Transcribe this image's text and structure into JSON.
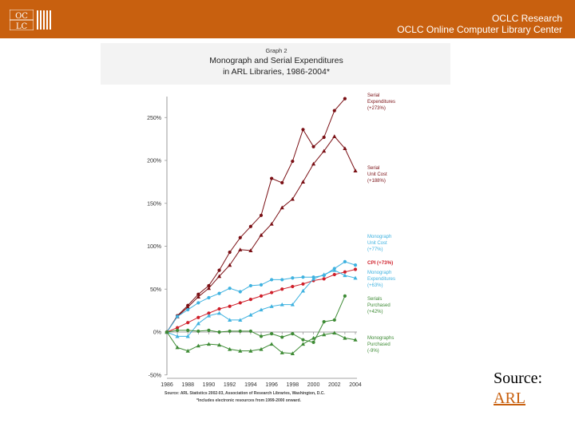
{
  "header": {
    "logo_top": "OC",
    "logo_bottom": "LC",
    "org_line1": "OCLC Research",
    "org_line2": "OCLC Online Computer Library Center"
  },
  "source": {
    "label": "Source:",
    "link": "ARL"
  },
  "chart_data": {
    "type": "line",
    "subtitle": "Graph 2",
    "title_line1": "Monograph and Serial Expenditures",
    "title_line2": "in ARL Libraries, 1986-2004*",
    "x": [
      1986,
      1987,
      1988,
      1989,
      1990,
      1991,
      1992,
      1993,
      1994,
      1995,
      1996,
      1997,
      1998,
      1999,
      2000,
      2001,
      2002,
      2003,
      2004
    ],
    "xticks": [
      "1986",
      "1988",
      "1990",
      "1992",
      "1994",
      "1996",
      "1998",
      "2000",
      "2002",
      "2004"
    ],
    "yticks": [
      "-50%",
      "0%",
      "50%",
      "100%",
      "150%",
      "200%",
      "250%"
    ],
    "ylim": [
      -50,
      275
    ],
    "footnote1": "Source: ARL Statistics 2002-03, Association of Research Libraries, Washington, D.C.",
    "footnote2": "*Includes electronic resources from 1999-2000 onward.",
    "series": [
      {
        "name": "Serial Expenditures",
        "change": "(+273%)",
        "color": "#7a0f14",
        "marker": "circle",
        "values": [
          0,
          19,
          31,
          44,
          54,
          72,
          93,
          110,
          123,
          136,
          179,
          174,
          199,
          236,
          216,
          227,
          258,
          272,
          null
        ]
      },
      {
        "name": "Serial Unit Cost",
        "change": "(+188%)",
        "color": "#7a0f14",
        "marker": "triangle",
        "values": [
          0,
          18,
          29,
          41,
          51,
          65,
          78,
          96,
          95,
          113,
          126,
          145,
          155,
          175,
          196,
          211,
          228,
          214,
          188
        ]
      },
      {
        "name": "Monograph Unit Cost",
        "change": "(+77%)",
        "color": "#3fb2e0",
        "marker": "circle",
        "values": [
          0,
          18,
          26,
          34,
          40,
          45,
          51,
          47,
          54,
          55,
          61,
          61,
          63,
          64,
          64,
          66,
          74,
          82,
          78
        ]
      },
      {
        "name": "CPI",
        "change": "(+73%)",
        "color": "#cf1f2a",
        "marker": "circle",
        "values": [
          0,
          5,
          11,
          17,
          22,
          27,
          30,
          34,
          38,
          42,
          46,
          50,
          53,
          56,
          60,
          62,
          67,
          70,
          73
        ]
      },
      {
        "name": "Monograph Expenditures",
        "change": "(+63%)",
        "color": "#3fb2e0",
        "marker": "triangle",
        "values": [
          0,
          -5,
          -5,
          10,
          19,
          22,
          14,
          14,
          20,
          26,
          30,
          32,
          32,
          48,
          62,
          67,
          72,
          66,
          63
        ]
      },
      {
        "name": "Serials Purchased",
        "change": "(+42%)",
        "color": "#3e8b35",
        "marker": "circle",
        "values": [
          0,
          2,
          2,
          1,
          2,
          0,
          1,
          1,
          1,
          -5,
          -2,
          -6,
          -2,
          -9,
          -12,
          12,
          14,
          42,
          null
        ]
      },
      {
        "name": "Monographs Purchased",
        "change": "(-9%)",
        "color": "#3e8b35",
        "marker": "triangle",
        "values": [
          0,
          -18,
          -22,
          -16,
          -14,
          -15,
          -20,
          -22,
          -22,
          -20,
          -14,
          -24,
          -25,
          -14,
          -7,
          -3,
          -1,
          -7,
          -9
        ]
      }
    ]
  }
}
